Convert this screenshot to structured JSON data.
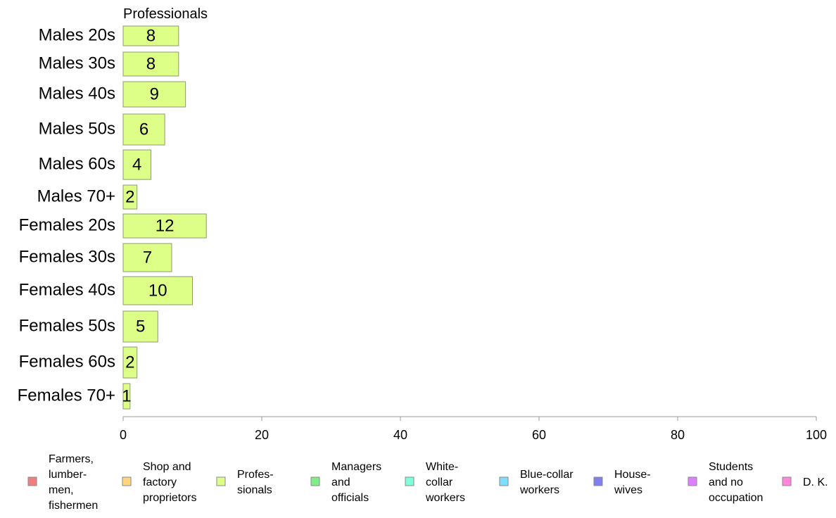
{
  "chart_data": {
    "type": "bar",
    "orientation": "horizontal",
    "title": "Professionals",
    "categories": [
      "Males 20s",
      "Males 30s",
      "Males 40s",
      "Males 50s",
      "Males 60s",
      "Males 70+",
      "Females 20s",
      "Females 30s",
      "Females 40s",
      "Females 50s",
      "Females 60s",
      "Females 70+"
    ],
    "series": [
      {
        "name": "Profes- sionals",
        "values": [
          8,
          8,
          9,
          6,
          4,
          2,
          12,
          7,
          10,
          5,
          2,
          1
        ],
        "color": "#ddff88"
      }
    ],
    "xlim": [
      0,
      100
    ],
    "xticks": [
      "0",
      "20",
      "40",
      "60",
      "80",
      "100"
    ],
    "grid": false,
    "legend_position": "bottom",
    "legend": [
      {
        "lines": [
          "Farmers,",
          "lumber-",
          "men,",
          "fishermen"
        ],
        "color": "#f08080"
      },
      {
        "lines": [
          "Shop and",
          "factory",
          "proprietors"
        ],
        "color": "#ffd580"
      },
      {
        "lines": [
          "Profes-",
          "sionals"
        ],
        "color": "#ddff88"
      },
      {
        "lines": [
          "Managers",
          "and",
          "officials"
        ],
        "color": "#80ee88"
      },
      {
        "lines": [
          "White-",
          "collar",
          "workers"
        ],
        "color": "#80ffdd"
      },
      {
        "lines": [
          "Blue-collar",
          "workers"
        ],
        "color": "#80ddff"
      },
      {
        "lines": [
          "House-",
          "wives"
        ],
        "color": "#8080ee"
      },
      {
        "lines": [
          "Students",
          "and no",
          "occupation"
        ],
        "color": "#dd80ff"
      },
      {
        "lines": [
          "D. K."
        ],
        "color": "#ff88dd"
      }
    ]
  }
}
